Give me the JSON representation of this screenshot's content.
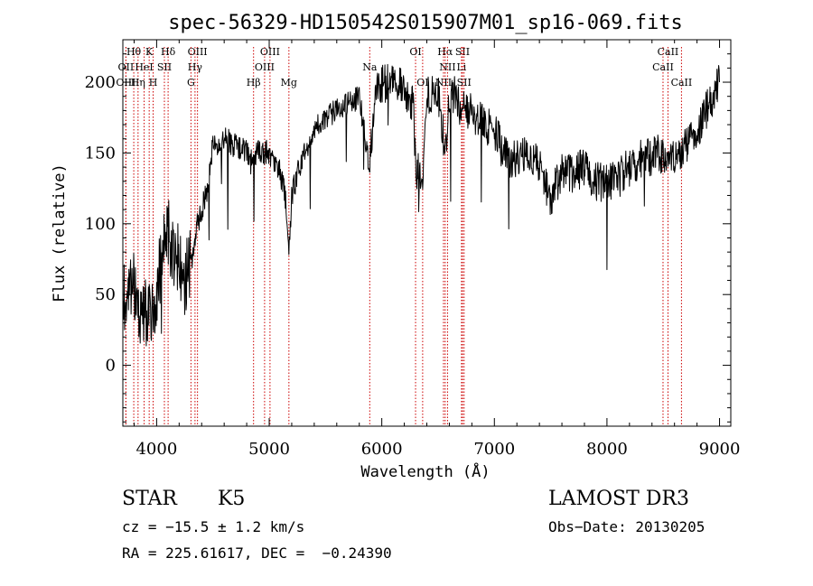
{
  "chart_data": {
    "type": "line",
    "title": "spec-56329-HD150542S015907M01_sp16-069.fits",
    "xlabel": "Wavelength (Å)",
    "ylabel": "Flux (relative)",
    "xlim": [
      3700,
      9100
    ],
    "ylim": [
      -43,
      230
    ],
    "x_ticks": [
      4000,
      5000,
      6000,
      7000,
      8000,
      9000
    ],
    "x_tick_labels": [
      "4000",
      "5000",
      "6000",
      "7000",
      "8000",
      "9000"
    ],
    "y_ticks": [
      0,
      50,
      100,
      150,
      200
    ],
    "y_tick_labels": [
      "0",
      "50",
      "100",
      "150",
      "200"
    ],
    "series": [
      {
        "x": [
          3700,
          3750,
          3800,
          3850,
          3900,
          3950,
          4000,
          4050,
          4100,
          4150,
          4200,
          4250,
          4300,
          4350,
          4400,
          4450,
          4500,
          4600,
          4700,
          4800,
          4860,
          4900,
          5000,
          5100,
          5150,
          5175,
          5200,
          5300,
          5400,
          5500,
          5600,
          5700,
          5800,
          5890,
          5950,
          6000,
          6100,
          6200,
          6280,
          6300,
          6363,
          6400,
          6500,
          6563,
          6600,
          6650,
          6700,
          6800,
          6900,
          7000,
          7100,
          7200,
          7300,
          7400,
          7500,
          7600,
          7700,
          7800,
          7900,
          8000,
          8100,
          8200,
          8300,
          8400,
          8500,
          8600,
          8700,
          8800,
          8900,
          8950,
          9000
        ],
        "y": [
          45,
          50,
          60,
          35,
          40,
          30,
          55,
          75,
          95,
          80,
          75,
          60,
          70,
          95,
          110,
          125,
          155,
          160,
          155,
          150,
          140,
          152,
          150,
          135,
          115,
          78,
          120,
          150,
          165,
          175,
          180,
          185,
          190,
          140,
          195,
          198,
          200,
          195,
          185,
          140,
          130,
          190,
          195,
          150,
          185,
          195,
          180,
          178,
          170,
          165,
          148,
          145,
          150,
          140,
          118,
          138,
          135,
          140,
          130,
          128,
          132,
          140,
          145,
          148,
          150,
          150,
          155,
          162,
          185,
          190,
          200
        ]
      }
    ],
    "line_marks": [
      {
        "label": "Hθ",
        "wavelength": 3797,
        "row": 1
      },
      {
        "label": "OII",
        "wavelength": 3727,
        "row": 2
      },
      {
        "label": "OIII",
        "wavelength": 3727,
        "row": 3
      },
      {
        "label": "K",
        "wavelength": 3934,
        "row": 1
      },
      {
        "label": "HeI",
        "wavelength": 3889,
        "row": 2
      },
      {
        "label": "Hη",
        "wavelength": 3835,
        "row": 3
      },
      {
        "label": "Hδ",
        "wavelength": 4102,
        "row": 1
      },
      {
        "label": "SII",
        "wavelength": 4069,
        "row": 2
      },
      {
        "label": "H",
        "wavelength": 3969,
        "row": 3
      },
      {
        "label": "OIII",
        "wavelength": 4363,
        "row": 1
      },
      {
        "label": "Hγ",
        "wavelength": 4341,
        "row": 2
      },
      {
        "label": "G",
        "wavelength": 4305,
        "row": 3
      },
      {
        "label": "OIII",
        "wavelength": 5007,
        "row": 1
      },
      {
        "label": "OIII",
        "wavelength": 4959,
        "row": 2
      },
      {
        "label": "Hβ",
        "wavelength": 4861,
        "row": 3
      },
      {
        "label": "Mg",
        "wavelength": 5175,
        "row": 3
      },
      {
        "label": "Na",
        "wavelength": 5893,
        "row": 2
      },
      {
        "label": "OI",
        "wavelength": 6300,
        "row": 1
      },
      {
        "label": "OI",
        "wavelength": 6363,
        "row": 3
      },
      {
        "label": "Hα",
        "wavelength": 6563,
        "row": 1
      },
      {
        "label": "SII",
        "wavelength": 6717,
        "row": 1
      },
      {
        "label": "NII",
        "wavelength": 6584,
        "row": 2
      },
      {
        "label": "Li",
        "wavelength": 6708,
        "row": 2
      },
      {
        "label": "NII",
        "wavelength": 6548,
        "row": 3
      },
      {
        "label": "SII",
        "wavelength": 6731,
        "row": 3
      },
      {
        "label": "CaII",
        "wavelength": 8542,
        "row": 1
      },
      {
        "label": "CaII",
        "wavelength": 8498,
        "row": 2
      },
      {
        "label": "CaII",
        "wavelength": 8662,
        "row": 3
      }
    ],
    "line_color": "#000000",
    "mark_color": "#cc0000",
    "grid": false
  },
  "info": {
    "object_class": "STAR",
    "subclass": "K5",
    "survey": "LAMOST DR3",
    "redshift": "cz = −15.5 ± 1.2 km/s",
    "obs_date": "Obs−Date: 20130205",
    "coords": "RA = 225.61617, DEC =  −0.24390"
  }
}
